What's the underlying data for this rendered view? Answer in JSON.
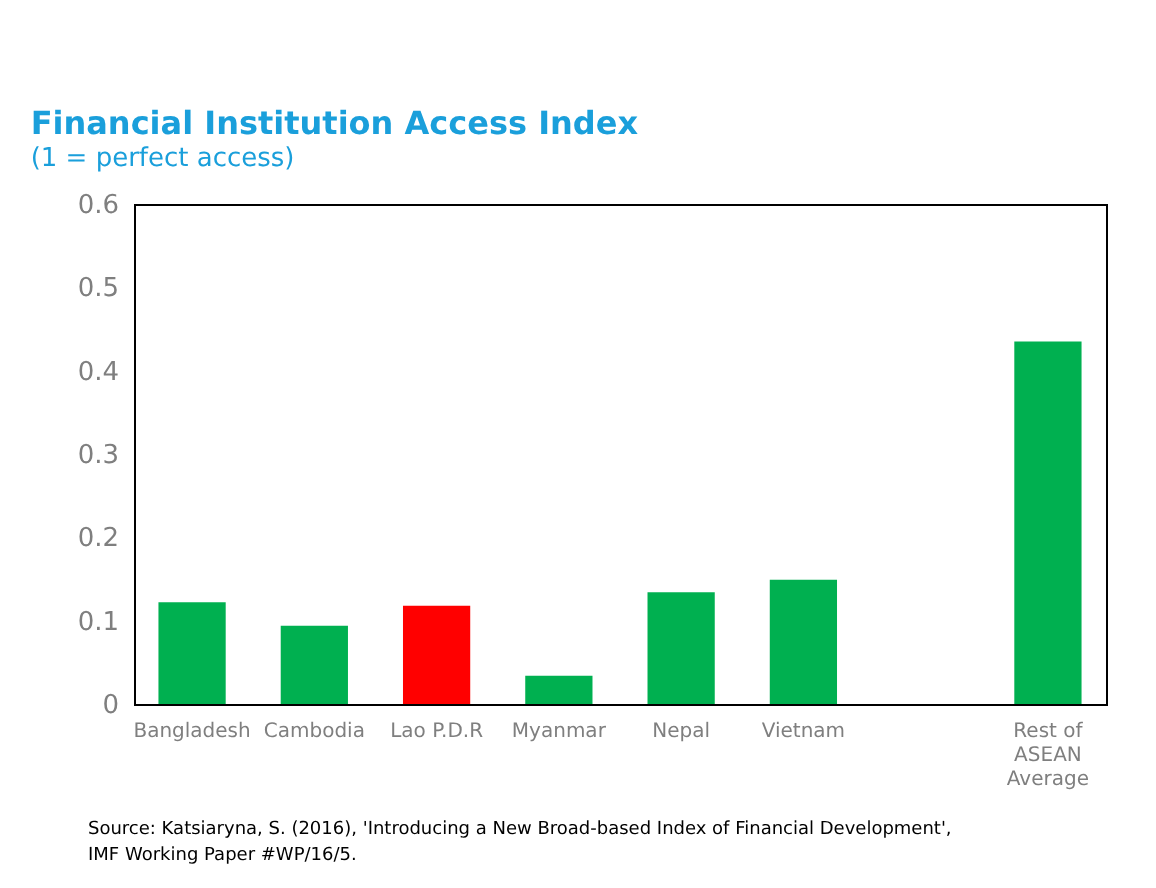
{
  "chart_data": {
    "type": "bar",
    "title": "Financial Institution Access Index",
    "subtitle": "(1 = perfect access)",
    "categories": [
      "Bangladesh",
      "Cambodia",
      "Lao P.D.R",
      "Myanmar",
      "Nepal",
      "Vietnam",
      null,
      "Rest of ASEAN Average"
    ],
    "values": [
      0.122,
      0.094,
      0.118,
      0.034,
      0.134,
      0.149,
      null,
      0.435
    ],
    "colors": [
      "#00b050",
      "#00b050",
      "#ff0000",
      "#00b050",
      "#00b050",
      "#00b050",
      "#00b050",
      "#00b050"
    ],
    "ylim": [
      0,
      0.6
    ],
    "yticks": [
      0,
      0.1,
      0.2,
      0.3,
      0.4,
      0.5,
      0.6
    ],
    "grid": false,
    "annotations": [
      "Source: Katsiaryna, S. (2016), 'Introducing a New Broad-based Index of Financial Development',",
      "IMF Working Paper #WP/16/5."
    ]
  }
}
